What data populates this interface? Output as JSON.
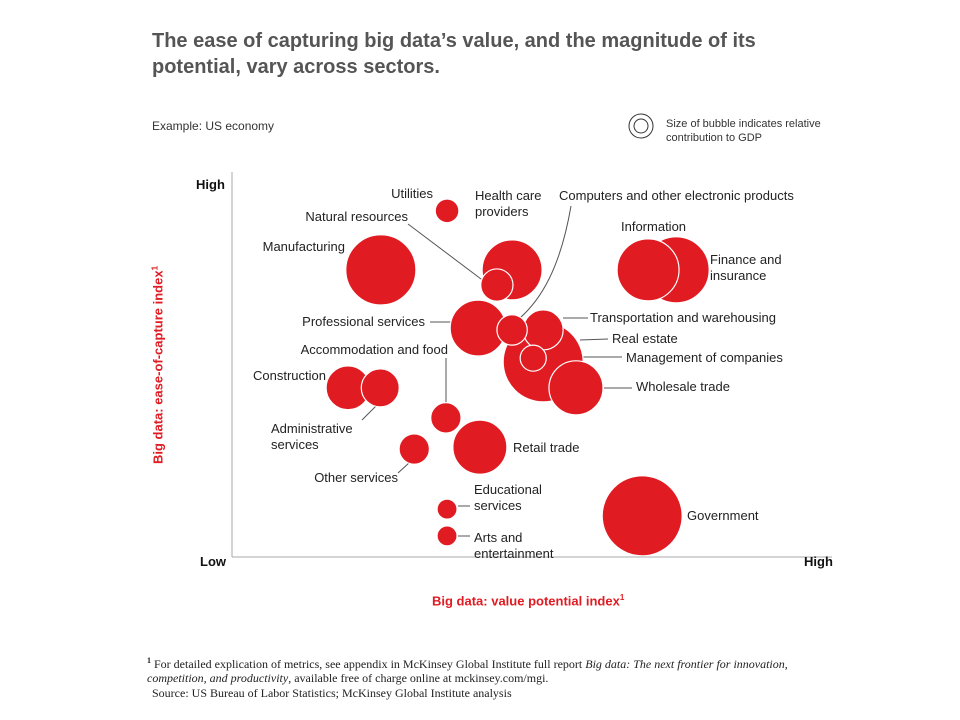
{
  "chart_data": {
    "type": "bubble",
    "title": "The ease of capturing big data’s value, and the magnitude of its potential, vary across sectors.",
    "subtitle": "Example: US economy",
    "size_legend": "Size of bubble indicates relative contribution to GDP",
    "x_label": "Big data: value potential index",
    "y_label": "Big data: ease-of-capture index",
    "footnote_marker": "1",
    "footnote": [
      "For detailed explication of metrics, see appendix in McKinsey Global Institute full report ",
      "Big data: The next frontier for innovation, competition, and productivity",
      ", available free of charge online at mckinsey.com/mgi."
    ],
    "source": "Source: US Bureau of Labor Statistics; McKinsey Global Institute analysis",
    "color": "#e11b22",
    "xlim": [
      0,
      1
    ],
    "ylim": [
      0,
      1
    ],
    "xticks": [
      {
        "value": 0,
        "label": "Low"
      },
      {
        "value": 1,
        "label": "High"
      }
    ],
    "yticks": [
      {
        "value": 1,
        "label": "High"
      }
    ],
    "points": [
      {
        "name": "Real estate",
        "x": 0.531,
        "y": 0.526,
        "size": 16
      },
      {
        "name": "Government",
        "x": 0.7,
        "y": 0.111,
        "size": 16
      },
      {
        "name": "Manufacturing",
        "x": 0.254,
        "y": 0.774,
        "size": 12.3
      },
      {
        "name": "Finance and insurance",
        "x": 0.758,
        "y": 0.774,
        "size": 10.9
      },
      {
        "name": "Information",
        "x": 0.71,
        "y": 0.774,
        "size": 9.6
      },
      {
        "name": "Health care providers",
        "x": 0.478,
        "y": 0.774,
        "size": 9.0
      },
      {
        "name": "Professional services",
        "x": 0.42,
        "y": 0.617,
        "size": 7.8
      },
      {
        "name": "Wholesale trade",
        "x": 0.587,
        "y": 0.456,
        "size": 7.3
      },
      {
        "name": "Retail trade",
        "x": 0.423,
        "y": 0.296,
        "size": 7.3
      },
      {
        "name": "Construction",
        "x": 0.198,
        "y": 0.456,
        "size": 4.8
      },
      {
        "name": "Transportation and warehousing",
        "x": 0.531,
        "y": 0.612,
        "size": 4.0
      },
      {
        "name": "Administrative services",
        "x": 0.253,
        "y": 0.456,
        "size": 3.6
      },
      {
        "name": "Natural resources",
        "x": 0.452,
        "y": 0.733,
        "size": 2.6
      },
      {
        "name": "Computers and other electronic products",
        "x": 0.478,
        "y": 0.612,
        "size": 2.3
      },
      {
        "name": "Accommodation and food",
        "x": 0.365,
        "y": 0.375,
        "size": 2.3
      },
      {
        "name": "Other services",
        "x": 0.311,
        "y": 0.291,
        "size": 2.3
      },
      {
        "name": "Management of companies",
        "x": 0.514,
        "y": 0.536,
        "size": 1.7
      },
      {
        "name": "Utilities",
        "x": 0.367,
        "y": 0.933,
        "size": 1.4
      },
      {
        "name": "Educational services",
        "x": 0.367,
        "y": 0.129,
        "size": 1.0
      },
      {
        "name": "Arts and entertainment",
        "x": 0.367,
        "y": 0.057,
        "size": 1.0
      }
    ]
  }
}
